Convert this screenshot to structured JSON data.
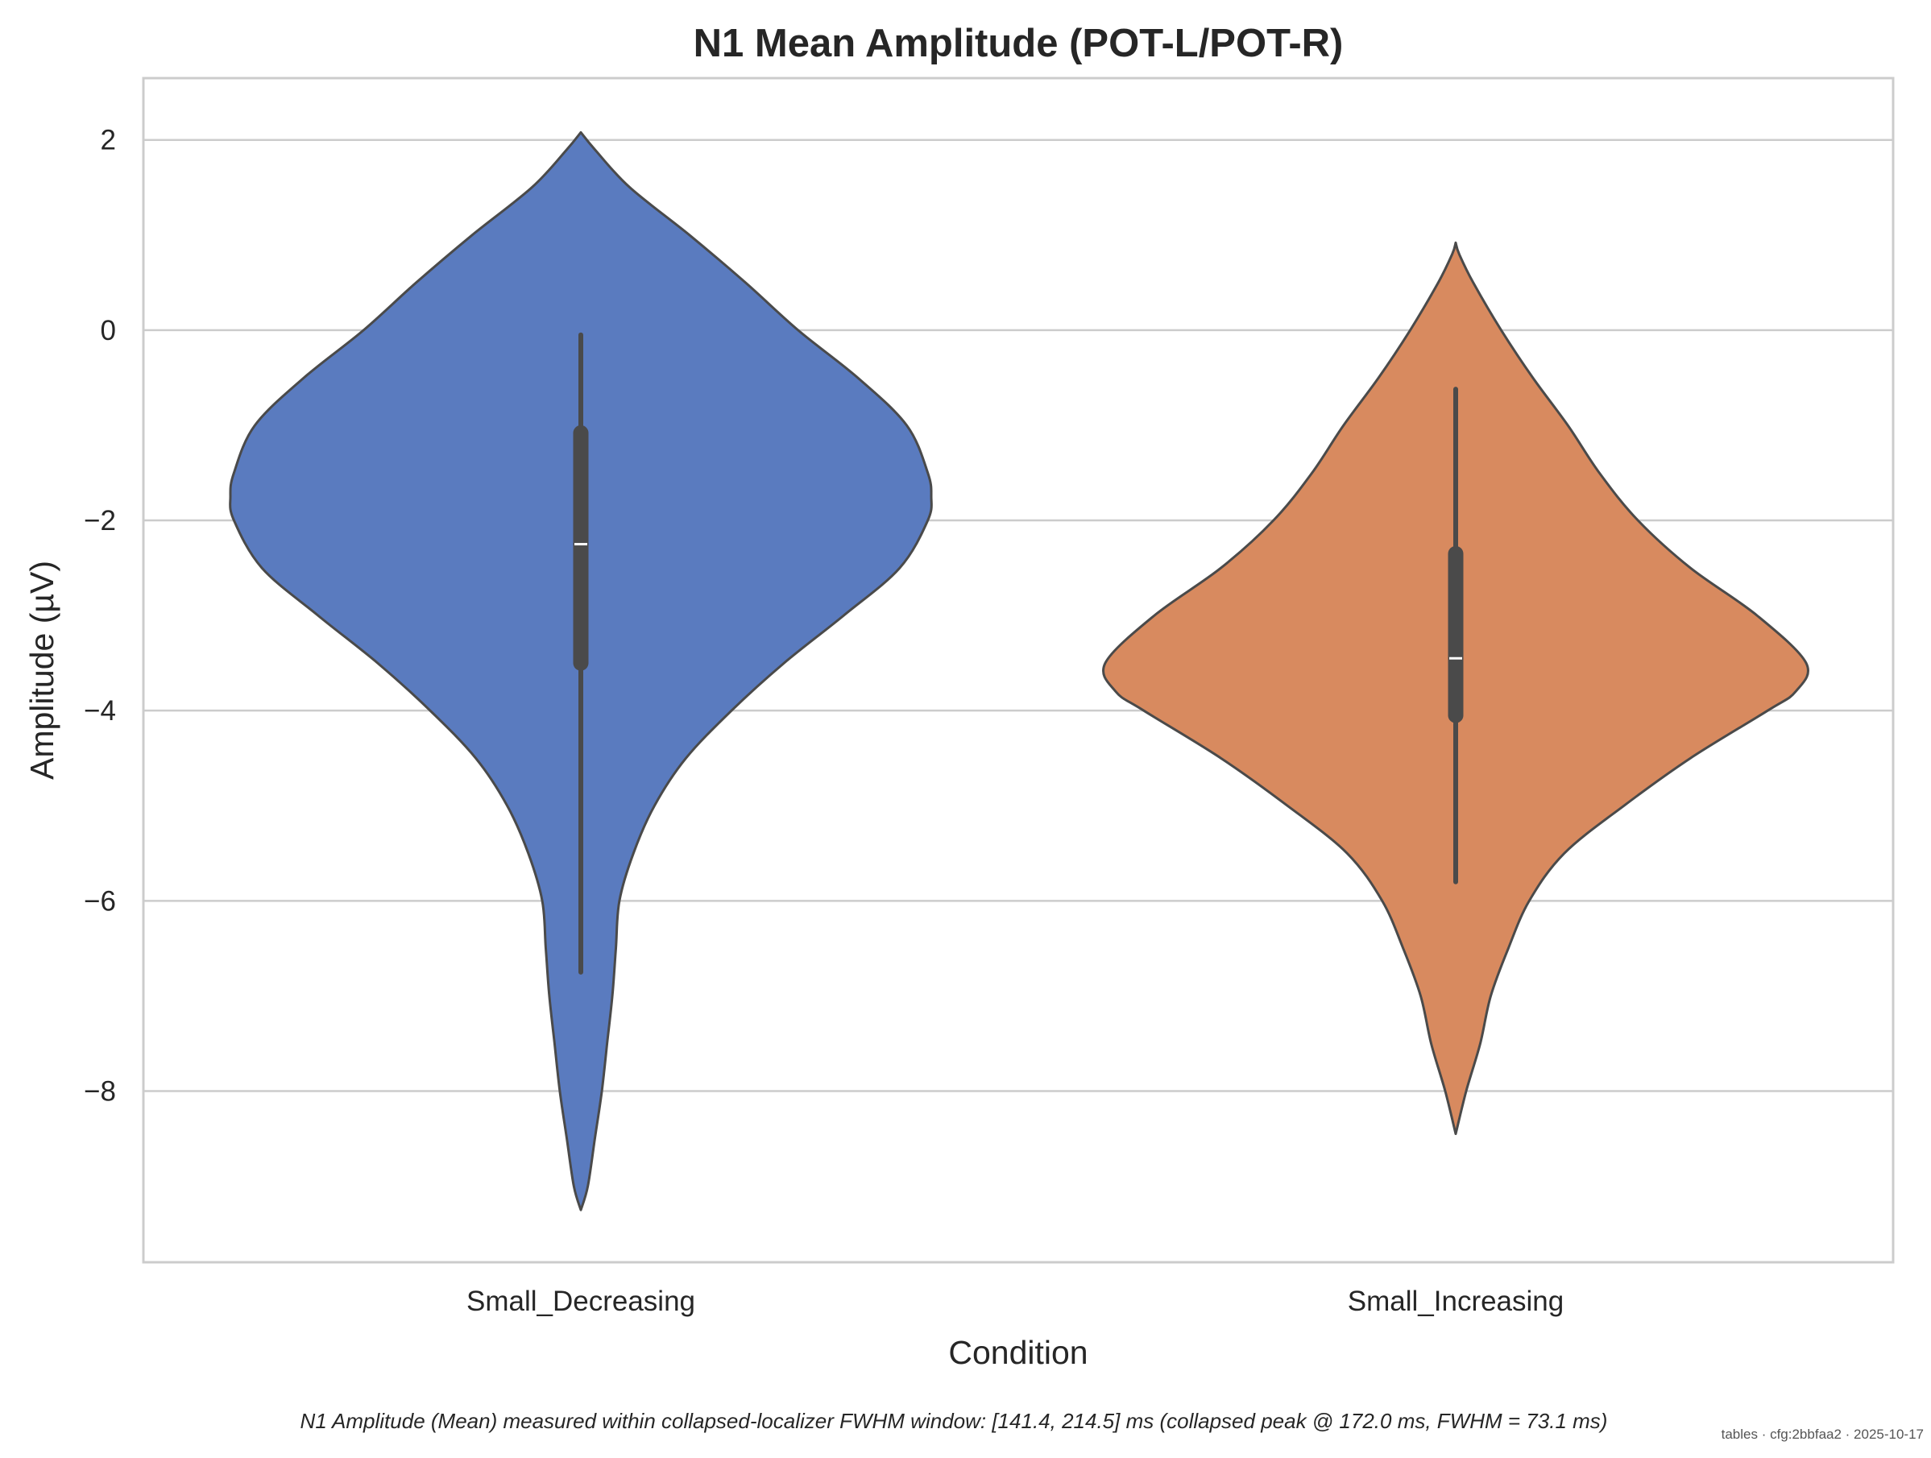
{
  "chart_data": {
    "type": "violin",
    "title": "N1 Mean Amplitude (POT-L/POT-R)",
    "xlabel": "Condition",
    "ylabel": "Amplitude (µV)",
    "ylim": [
      -9.8,
      2.65
    ],
    "yticks": [
      2,
      0,
      -2,
      -4,
      -6,
      -8
    ],
    "ytick_labels": [
      "2",
      "0",
      "−2",
      "−4",
      "−6",
      "−8"
    ],
    "grid": true,
    "categories": [
      "Small_Decreasing",
      "Small_Increasing"
    ],
    "series": [
      {
        "category": "Small_Decreasing",
        "color": "#5a7bbf",
        "min": -9.25,
        "max": 2.08,
        "whisker_low": -6.75,
        "whisker_high": -0.05,
        "q1": -3.5,
        "median": -2.25,
        "q3": -1.08,
        "density_profile": [
          [
            2.08,
            0.0
          ],
          [
            1.9,
            0.04
          ],
          [
            1.5,
            0.14
          ],
          [
            1.0,
            0.31
          ],
          [
            0.5,
            0.47
          ],
          [
            0.0,
            0.62
          ],
          [
            -0.5,
            0.79
          ],
          [
            -1.0,
            0.93
          ],
          [
            -1.5,
            0.99
          ],
          [
            -1.75,
            1.0
          ],
          [
            -2.0,
            0.99
          ],
          [
            -2.5,
            0.91
          ],
          [
            -3.0,
            0.75
          ],
          [
            -3.5,
            0.58
          ],
          [
            -4.0,
            0.43
          ],
          [
            -4.5,
            0.3
          ],
          [
            -5.0,
            0.21
          ],
          [
            -5.5,
            0.15
          ],
          [
            -6.0,
            0.11
          ],
          [
            -6.5,
            0.1
          ],
          [
            -7.0,
            0.09
          ],
          [
            -7.5,
            0.075
          ],
          [
            -8.0,
            0.06
          ],
          [
            -8.5,
            0.04
          ],
          [
            -9.0,
            0.02
          ],
          [
            -9.25,
            0.0
          ]
        ]
      },
      {
        "category": "Small_Increasing",
        "color": "#d88a5f",
        "min": -8.45,
        "max": 0.92,
        "whisker_low": -5.8,
        "whisker_high": -0.62,
        "q1": -4.05,
        "median": -3.45,
        "q3": -2.35,
        "density_profile": [
          [
            0.92,
            0.0
          ],
          [
            0.8,
            0.01
          ],
          [
            0.5,
            0.05
          ],
          [
            0.0,
            0.13
          ],
          [
            -0.5,
            0.22
          ],
          [
            -1.0,
            0.32
          ],
          [
            -1.5,
            0.41
          ],
          [
            -2.0,
            0.52
          ],
          [
            -2.5,
            0.67
          ],
          [
            -3.0,
            0.86
          ],
          [
            -3.5,
            1.0
          ],
          [
            -3.8,
            0.97
          ],
          [
            -4.0,
            0.89
          ],
          [
            -4.5,
            0.67
          ],
          [
            -5.0,
            0.48
          ],
          [
            -5.5,
            0.31
          ],
          [
            -6.0,
            0.21
          ],
          [
            -6.5,
            0.15
          ],
          [
            -7.0,
            0.1
          ],
          [
            -7.5,
            0.07
          ],
          [
            -8.0,
            0.03
          ],
          [
            -8.45,
            0.0
          ]
        ]
      }
    ],
    "caption": "N1 Amplitude (Mean) measured within collapsed-localizer FWHM window: [141.4, 214.5] ms (collapsed peak @ 172.0 ms, FWHM = 73.1 ms)",
    "stamp": "tables · cfg:2bbfaa2 · 2025-10-17"
  }
}
